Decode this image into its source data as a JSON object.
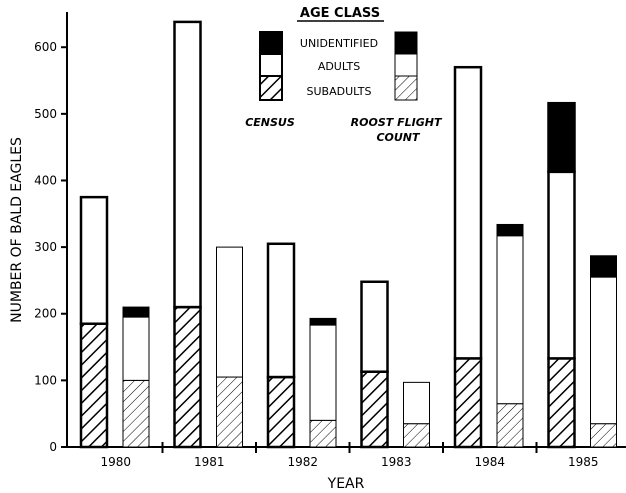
{
  "chart_data": {
    "type": "bar",
    "stacked": true,
    "categories": [
      "1980",
      "1981",
      "1982",
      "1983",
      "1984",
      "1985"
    ],
    "xlabel": "YEAR",
    "ylabel": "NUMBER OF BALD EAGLES",
    "ylim": [
      0,
      650
    ],
    "yticks": [
      "0",
      "100",
      "200",
      "300",
      "400",
      "500",
      "600"
    ],
    "grid": false,
    "legend": {
      "title": "AGE CLASS",
      "placement": "top-center",
      "entries": [
        "UNIDENTIFIED",
        "ADULTS",
        "SUBADULTS"
      ],
      "groups": [
        "CENSUS",
        "ROOST FLIGHT COUNT"
      ]
    },
    "groups": [
      {
        "name": "CENSUS",
        "style": "bold",
        "series": [
          {
            "name": "SUBADULTS",
            "values": [
              185,
              210,
              105,
              113,
              133,
              133
            ]
          },
          {
            "name": "ADULTS",
            "values": [
              190,
              428,
              200,
              135,
              437,
              280
            ]
          },
          {
            "name": "UNIDENTIFIED",
            "values": [
              0,
              0,
              0,
              0,
              0,
              103
            ]
          }
        ]
      },
      {
        "name": "ROOST FLIGHT COUNT",
        "style": "light",
        "series": [
          {
            "name": "SUBADULTS",
            "values": [
              100,
              105,
              40,
              35,
              65,
              35
            ]
          },
          {
            "name": "ADULTS",
            "values": [
              95,
              195,
              143,
              62,
              252,
              220
            ]
          },
          {
            "name": "UNIDENTIFIED",
            "values": [
              15,
              0,
              10,
              0,
              17,
              32
            ]
          }
        ]
      }
    ]
  }
}
